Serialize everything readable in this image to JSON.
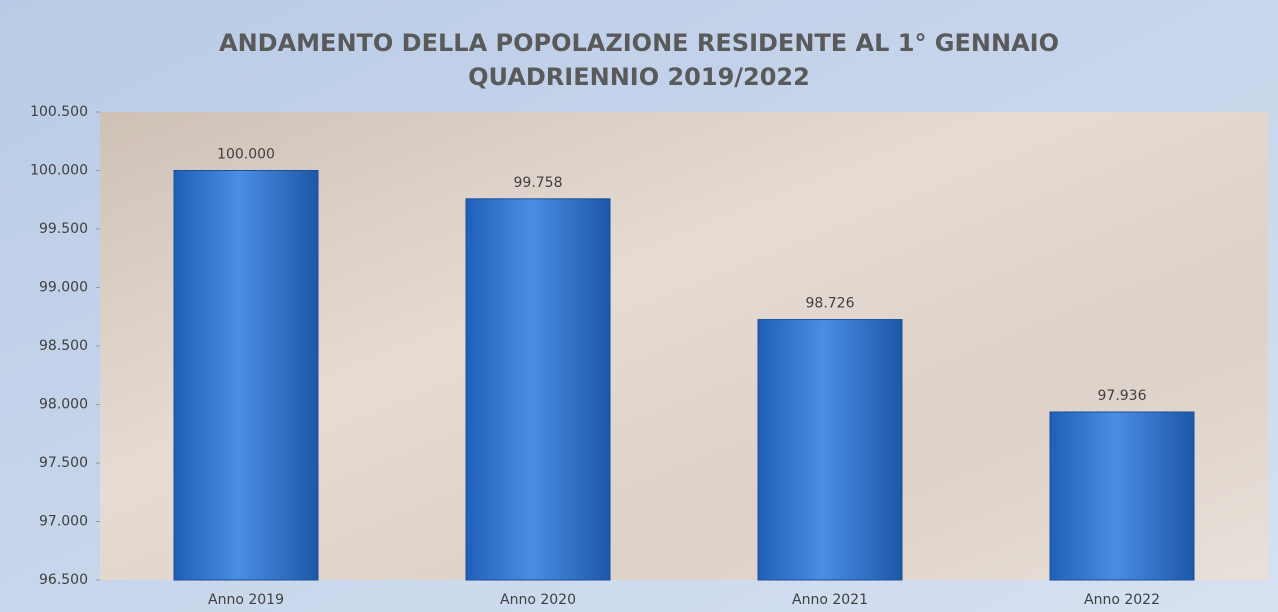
{
  "chart_data": {
    "type": "bar",
    "title": [
      "ANDAMENTO DELLA POPOLAZIONE RESIDENTE AL 1° GENNAIO",
      "QUADRIENNIO 2019/2022"
    ],
    "categories": [
      "Anno 2019",
      "Anno 2020",
      "Anno 2021",
      "Anno 2022"
    ],
    "values": [
      100000,
      99758,
      98726,
      97936
    ],
    "value_labels": [
      "100.000",
      "99.758",
      "98.726",
      "97.936"
    ],
    "color": "#3c7fd6",
    "ylim": [
      96500,
      100500
    ],
    "yticks": [
      {
        "value": 96500,
        "label": "96.500"
      },
      {
        "value": 97000,
        "label": "97.000"
      },
      {
        "value": 97500,
        "label": "97.500"
      },
      {
        "value": 98000,
        "label": "98.000"
      },
      {
        "value": 98500,
        "label": "98.500"
      },
      {
        "value": 99000,
        "label": "99.000"
      },
      {
        "value": 99500,
        "label": "99.500"
      },
      {
        "value": 100000,
        "label": "100.000"
      },
      {
        "value": 100500,
        "label": "100.500"
      }
    ],
    "grid": false
  }
}
